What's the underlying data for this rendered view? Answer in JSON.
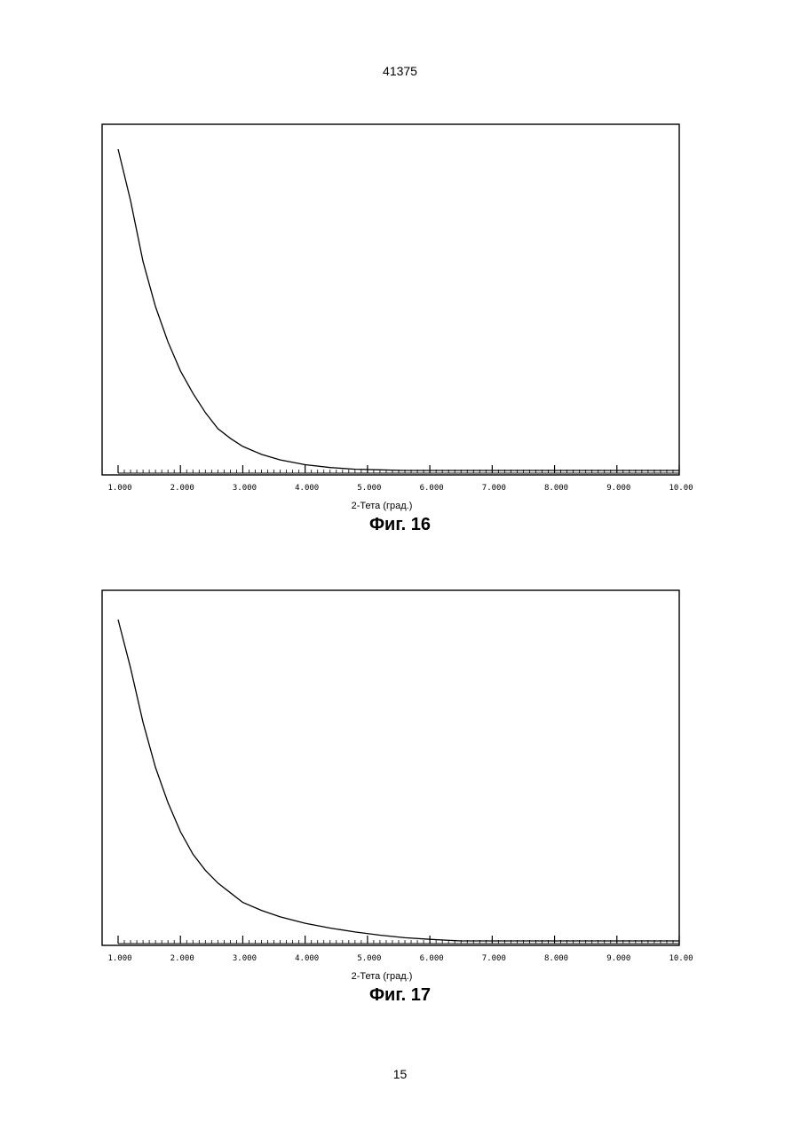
{
  "page": {
    "header": "41375",
    "page_number": "15"
  },
  "figures": [
    {
      "caption": "Фиг. 16"
    },
    {
      "caption": "Фиг. 17"
    }
  ],
  "chart_data": [
    {
      "type": "line",
      "title": "",
      "xlabel": "2-Тета (град.)",
      "ylabel": "",
      "xlim": [
        1.0,
        10.0
      ],
      "x_ticks": [
        "1.000",
        "2.000",
        "3.000",
        "4.000",
        "5.000",
        "6.000",
        "7.000",
        "8.000",
        "9.000",
        "10.00"
      ],
      "grid": false,
      "series": [
        {
          "x": [
            1.0,
            1.2,
            1.4,
            1.6,
            1.8,
            2.0,
            2.2,
            2.4,
            2.6,
            2.8,
            3.0,
            3.3,
            3.6,
            4.0,
            4.4,
            4.8,
            5.2,
            5.6
          ],
          "y": [
            1.0,
            0.84,
            0.65,
            0.51,
            0.4,
            0.31,
            0.24,
            0.18,
            0.13,
            0.1,
            0.075,
            0.05,
            0.033,
            0.018,
            0.009,
            0.004,
            0.002,
            0.0
          ]
        }
      ]
    },
    {
      "type": "line",
      "title": "",
      "xlabel": "2-Тета (град.)",
      "ylabel": "",
      "xlim": [
        1.0,
        10.0
      ],
      "x_ticks": [
        "1.000",
        "2.000",
        "3.000",
        "4.000",
        "5.000",
        "6.000",
        "7.000",
        "8.000",
        "9.000",
        "10.00"
      ],
      "grid": false,
      "series": [
        {
          "x": [
            1.0,
            1.2,
            1.4,
            1.6,
            1.8,
            2.0,
            2.2,
            2.4,
            2.6,
            2.8,
            3.0,
            3.3,
            3.6,
            4.0,
            4.4,
            4.8,
            5.2,
            5.6,
            6.0,
            6.5
          ],
          "y": [
            1.0,
            0.85,
            0.68,
            0.54,
            0.43,
            0.34,
            0.27,
            0.22,
            0.18,
            0.15,
            0.12,
            0.095,
            0.075,
            0.055,
            0.04,
            0.028,
            0.018,
            0.01,
            0.005,
            0.0
          ]
        }
      ]
    }
  ]
}
